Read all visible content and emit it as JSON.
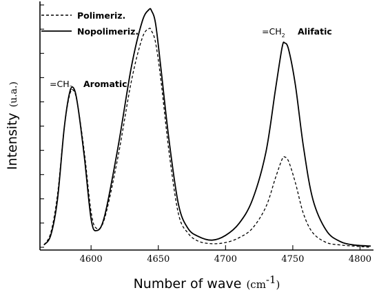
{
  "chart_data": {
    "type": "line",
    "xlabel": "Number of wave",
    "xunit": "(cm",
    "xunit_sup": "-1",
    "xunit_close": ")",
    "ylabel": "Intensity",
    "yunit": "(u.a.)",
    "xlim": [
      4562,
      4810
    ],
    "ylim": [
      0,
      1
    ],
    "xticks": [
      4600,
      4650,
      4700,
      4750,
      4800
    ],
    "xtick_labels": [
      "4600",
      "4650",
      "4700",
      "4750",
      "4800"
    ],
    "y_minor_ticks": 11,
    "grid": false,
    "legend_position": "top-left",
    "x": [
      4565,
      4570,
      4575,
      4580,
      4584,
      4587,
      4590,
      4595,
      4600,
      4604,
      4610,
      4620,
      4630,
      4638,
      4643,
      4645,
      4648,
      4652,
      4658,
      4665,
      4672,
      4680,
      4690,
      4700,
      4710,
      4720,
      4730,
      4737,
      4742,
      4744,
      4747,
      4752,
      4758,
      4765,
      4775,
      4785,
      4795,
      4808
    ],
    "series": [
      {
        "name": "Polimeriz.",
        "style": "dashed",
        "values": [
          0.01,
          0.06,
          0.22,
          0.5,
          0.64,
          0.66,
          0.6,
          0.4,
          0.15,
          0.08,
          0.12,
          0.38,
          0.7,
          0.88,
          0.92,
          0.91,
          0.86,
          0.7,
          0.4,
          0.14,
          0.06,
          0.025,
          0.015,
          0.02,
          0.04,
          0.08,
          0.17,
          0.29,
          0.37,
          0.38,
          0.36,
          0.27,
          0.14,
          0.06,
          0.02,
          0.01,
          0.005,
          0.0
        ]
      },
      {
        "name": "Nopolimeriz.",
        "style": "solid",
        "values": [
          0.01,
          0.05,
          0.2,
          0.5,
          0.65,
          0.67,
          0.6,
          0.38,
          0.12,
          0.07,
          0.13,
          0.42,
          0.76,
          0.95,
          1.0,
          0.995,
          0.94,
          0.75,
          0.45,
          0.18,
          0.08,
          0.045,
          0.03,
          0.05,
          0.1,
          0.2,
          0.4,
          0.66,
          0.84,
          0.86,
          0.83,
          0.68,
          0.42,
          0.2,
          0.07,
          0.025,
          0.01,
          0.005
        ]
      }
    ],
    "annotations": [
      {
        "prefix": "=CH",
        "sub": "2",
        "label": "Aromatic"
      },
      {
        "prefix": "=CH",
        "sub": "2",
        "label": "Alifatic"
      }
    ]
  }
}
